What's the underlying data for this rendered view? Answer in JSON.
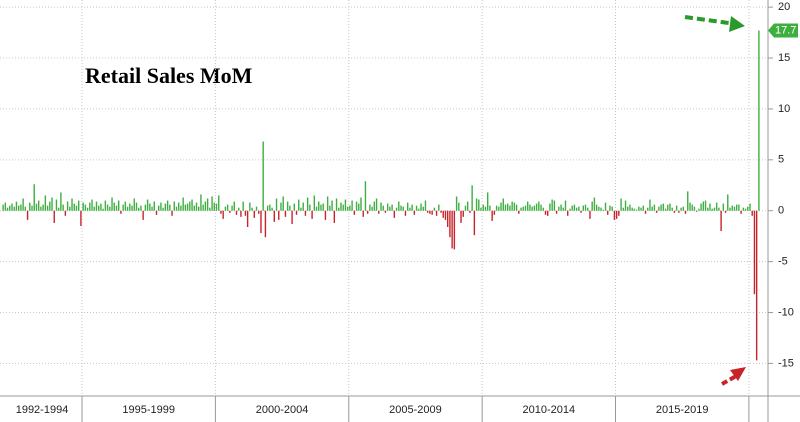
{
  "chart_data": {
    "type": "bar",
    "title": "Retail Sales MoM",
    "positive_color": "#3dae3f",
    "negative_color": "#c8232b",
    "ylim": [
      -18.2,
      20.7
    ],
    "yticks": [
      -15,
      -10,
      -5,
      0,
      5,
      10,
      15,
      20
    ],
    "grid": true,
    "groups": [
      {
        "label": "1992-1994",
        "values": [
          0.6,
          0.8,
          0.3,
          0.5,
          0.7,
          0.4,
          0.9,
          0.5,
          0.6,
          1.2,
          0.4,
          -0.9,
          0.8,
          0.5,
          2.6,
          0.7,
          1.0,
          0.4,
          0.6,
          1.5,
          0.5,
          0.9,
          1.3,
          -1.2,
          1.1,
          0.3,
          1.8,
          0.6,
          -0.5,
          0.9,
          0.4,
          1.2,
          0.7,
          0.5,
          1.0,
          -1.5
        ]
      },
      {
        "label": "1995-1999",
        "values": [
          0.8,
          0.6,
          0.3,
          0.8,
          1.1,
          0.4,
          0.9,
          0.5,
          0.7,
          0.2,
          1.0,
          0.6,
          0.4,
          1.3,
          0.8,
          0.5,
          1.0,
          -0.3,
          0.6,
          0.9,
          0.4,
          0.7,
          0.5,
          1.2,
          0.8,
          0.3,
          0.5,
          -0.9,
          0.6,
          1.1,
          0.7,
          0.4,
          0.9,
          -0.4,
          0.5,
          0.8,
          0.3,
          0.7,
          1.0,
          0.6,
          -0.5,
          0.9,
          0.4,
          0.8,
          0.5,
          1.3,
          0.6,
          0.7,
          0.9,
          1.1,
          0.5,
          0.8,
          0.4,
          1.6,
          0.6,
          0.9,
          1.2,
          0.3,
          1.4,
          0.8
        ]
      },
      {
        "label": "2000-2004",
        "values": [
          0.7,
          1.5,
          -0.3,
          -0.8,
          0.4,
          0.6,
          -0.2,
          0.5,
          0.9,
          -0.4,
          0.3,
          -0.6,
          0.9,
          -0.5,
          -1.6,
          0.8,
          0.3,
          -0.7,
          0.4,
          -0.3,
          -2.2,
          6.8,
          -2.6,
          0.5,
          0.6,
          0.3,
          -1.1,
          1.2,
          -0.9,
          0.8,
          1.4,
          -0.6,
          0.9,
          0.5,
          -1.3,
          0.7,
          -0.4,
          1.1,
          0.3,
          0.8,
          -0.5,
          1.3,
          0.6,
          -0.8,
          1.5,
          0.4,
          0.9,
          0.6,
          0.7,
          -0.9,
          1.4,
          0.5,
          1.0,
          -1.2,
          1.2,
          0.3,
          0.8,
          0.6,
          1.1,
          0.4
        ]
      },
      {
        "label": "2005-2009",
        "values": [
          0.5,
          1.0,
          -0.4,
          0.9,
          0.7,
          1.3,
          -0.6,
          2.9,
          -0.3,
          0.6,
          0.4,
          0.9,
          1.2,
          -0.3,
          0.8,
          0.5,
          -0.2,
          0.7,
          0.4,
          0.6,
          -0.7,
          0.3,
          0.9,
          0.5,
          0.4,
          -0.5,
          0.8,
          0.3,
          0.6,
          -0.4,
          0.5,
          0.2,
          0.7,
          0.4,
          1.0,
          -0.2,
          -0.3,
          -0.4,
          0.3,
          -0.5,
          0.6,
          -0.2,
          -0.7,
          -0.9,
          -1.6,
          -2.6,
          -3.7,
          -3.8,
          1.4,
          0.8,
          -1.2,
          -0.6,
          0.5,
          0.9,
          -0.2,
          2.5,
          -2.4,
          1.2,
          1.1,
          0.3
        ]
      },
      {
        "label": "2010-2014",
        "values": [
          0.6,
          0.4,
          1.8,
          0.5,
          -1.0,
          -0.4,
          0.5,
          0.4,
          0.8,
          1.2,
          0.6,
          0.7,
          0.5,
          0.9,
          0.8,
          0.6,
          -0.3,
          0.3,
          0.4,
          0.5,
          0.9,
          0.6,
          0.4,
          0.5,
          0.7,
          0.9,
          0.6,
          0.3,
          -0.4,
          -0.5,
          0.7,
          1.1,
          1.0,
          -0.3,
          0.4,
          0.6,
          0.3,
          1.0,
          -0.5,
          0.2,
          0.5,
          0.6,
          0.3,
          0.4,
          -0.2,
          0.5,
          0.6,
          0.3,
          -0.8,
          0.9,
          1.3,
          0.6,
          0.4,
          0.3,
          0.1,
          0.8,
          -0.4,
          0.5,
          0.4,
          -0.9
        ]
      },
      {
        "label": "2015-2019",
        "values": [
          -0.8,
          -0.5,
          1.2,
          0.3,
          1.0,
          0.4,
          0.6,
          0.3,
          0.2,
          0.1,
          0.4,
          0.3,
          0.5,
          -0.3,
          0.3,
          1.1,
          0.4,
          0.6,
          -0.2,
          0.4,
          0.6,
          0.7,
          0.2,
          0.6,
          0.7,
          0.3,
          -0.2,
          0.5,
          -0.2,
          0.3,
          0.4,
          -0.3,
          1.9,
          0.8,
          0.6,
          0.4,
          -0.1,
          0.2,
          0.7,
          0.9,
          1.0,
          0.3,
          0.7,
          0.2,
          0.3,
          0.8,
          0.3,
          -2.0,
          0.7,
          -0.2,
          1.6,
          0.3,
          0.5,
          0.4,
          0.6,
          0.6,
          -0.3,
          0.3,
          0.2,
          0.4
        ]
      },
      {
        "label": null,
        "values": [
          0.7,
          -0.5,
          -8.2,
          -14.7,
          17.7
        ]
      }
    ]
  }
}
